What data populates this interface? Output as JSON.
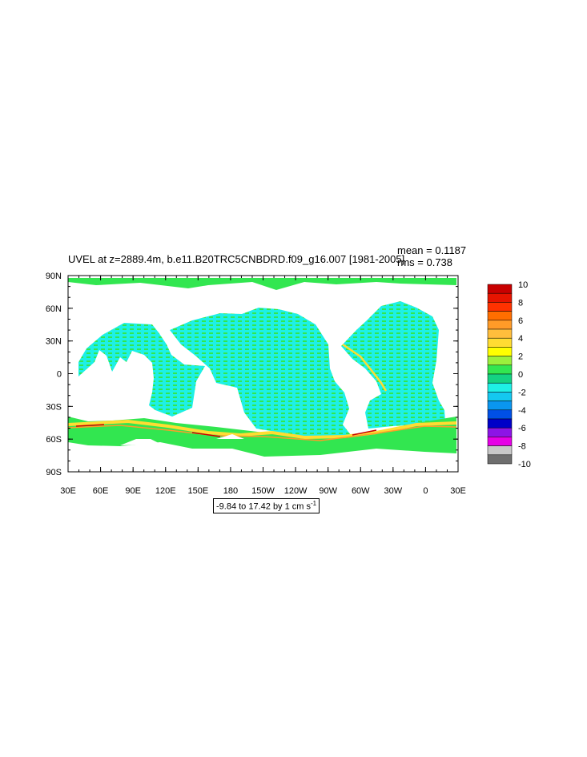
{
  "title": "UVEL at z=2889.4m, b.e11.B20TRC5CNBDRD.f09_g16.007 [1981-2005]",
  "stats": {
    "mean": "mean = 0.1187",
    "rms": "rms = 0.738"
  },
  "info": {
    "text": "-9.84 to 17.42 by 1 cm s",
    "unit_exponent": "-1"
  },
  "axes": {
    "y_labels": [
      "90N",
      "60N",
      "30N",
      "0",
      "30S",
      "60S",
      "90S"
    ],
    "x_labels": [
      "30E",
      "60E",
      "90E",
      "120E",
      "150E",
      "180",
      "150W",
      "120W",
      "90W",
      "60W",
      "30W",
      "0",
      "30E"
    ]
  },
  "colorbar": {
    "labels": [
      "10",
      "8",
      "6",
      "4",
      "2",
      "0",
      "-2",
      "-4",
      "-6",
      "-8",
      "-10"
    ],
    "colors": [
      "#c80000",
      "#e61400",
      "#ff3200",
      "#ff6e00",
      "#ff9b28",
      "#ffbe3c",
      "#ffdc32",
      "#ffff00",
      "#9bf03c",
      "#32e650",
      "#14d282",
      "#1ef0e6",
      "#14c8f0",
      "#0a96f0",
      "#0050e6",
      "#0000c8",
      "#8c14e6",
      "#e600e6",
      "#c8c8c8",
      "#6e6e6e"
    ]
  },
  "chart_data": {
    "type": "heatmap",
    "variable": "UVEL",
    "depth": "z=2889.4m",
    "case": "b.e11.B20TRC5CNBDRD.f09_g16.007",
    "period": "1981-2005",
    "mean": 0.1187,
    "rms": 0.738,
    "range": [
      -9.84,
      17.42
    ],
    "interval": 1,
    "units": "cm s-1",
    "color_levels": [
      10,
      8,
      6,
      4,
      2,
      0,
      -2,
      -4,
      -6,
      -8,
      -10
    ]
  }
}
